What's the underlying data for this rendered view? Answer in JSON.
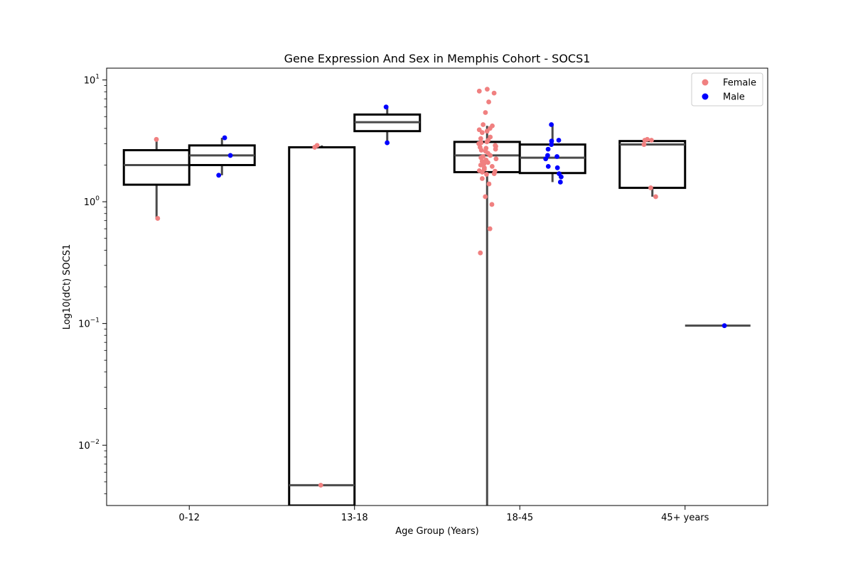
{
  "chart_data": {
    "type": "box",
    "title": "Gene Expression And Sex in Memphis Cohort - SOCS1",
    "xlabel": "Age Group (Years)",
    "ylabel": "Log10(dCt) SOCS1",
    "yscale": "log",
    "ylim": [
      0.0032,
      12.5
    ],
    "y_ticks": [
      {
        "value": 0.01,
        "base": "10",
        "exp": "−2"
      },
      {
        "value": 0.1,
        "base": "10",
        "exp": "−1"
      },
      {
        "value": 1,
        "base": "10",
        "exp": "0"
      },
      {
        "value": 10,
        "base": "10",
        "exp": "1"
      }
    ],
    "categories": [
      "0-12",
      "13-18",
      "18-45",
      "45+ years"
    ],
    "legend": {
      "position": "top-right",
      "items": [
        {
          "label": "Female",
          "color": "#f08080"
        },
        {
          "label": "Male",
          "color": "#0000ff"
        }
      ]
    },
    "series": [
      {
        "name": "Female",
        "color": "#f08080",
        "boxes": [
          {
            "category": "0-12",
            "q1": 1.38,
            "median": 2.0,
            "q3": 2.65,
            "whisker_low": 0.72,
            "whisker_high": 3.25
          },
          {
            "category": "13-18",
            "q1": 0.003,
            "median": 0.0047,
            "q3": 2.8,
            "whisker_low": 0.003,
            "whisker_high": 2.9
          },
          {
            "category": "18-45",
            "q1": 1.75,
            "median": 2.4,
            "q3": 3.1,
            "whisker_low": 0.003,
            "whisker_high": 4.2
          },
          {
            "category": "45+ years",
            "q1": 1.3,
            "median": 2.95,
            "q3": 3.15,
            "whisker_low": 1.1,
            "whisker_high": 3.25
          }
        ],
        "points": [
          {
            "category": "0-12",
            "values": [
              3.25,
              0.73
            ]
          },
          {
            "category": "13-18",
            "values": [
              2.8,
              2.9,
              0.0047
            ]
          },
          {
            "category": "18-45",
            "values": [
              8.4,
              8.1,
              7.8,
              6.6,
              5.4,
              4.3,
              4.2,
              4.0,
              3.9,
              3.8,
              3.7,
              3.4,
              3.3,
              3.2,
              3.1,
              3.05,
              3.0,
              2.9,
              2.85,
              2.8,
              2.75,
              2.7,
              2.65,
              2.6,
              2.5,
              2.4,
              2.35,
              2.3,
              2.25,
              2.2,
              2.15,
              2.1,
              2.05,
              2.0,
              1.95,
              1.9,
              1.85,
              1.8,
              1.78,
              1.75,
              1.7,
              1.68,
              1.55,
              1.4,
              1.1,
              0.95,
              0.6,
              0.38
            ]
          },
          {
            "category": "45+ years",
            "values": [
              3.25,
              3.2,
              3.2,
              2.95,
              1.3,
              1.1
            ]
          }
        ]
      },
      {
        "name": "Male",
        "color": "#0000ff",
        "boxes": [
          {
            "category": "0-12",
            "q1": 2.0,
            "median": 2.4,
            "q3": 2.9,
            "whisker_low": 1.65,
            "whisker_high": 3.35
          },
          {
            "category": "13-18",
            "q1": 3.8,
            "median": 4.5,
            "q3": 5.2,
            "whisker_low": 3.0,
            "whisker_high": 6.0
          },
          {
            "category": "18-45",
            "q1": 1.72,
            "median": 2.3,
            "q3": 2.95,
            "whisker_low": 1.45,
            "whisker_high": 4.3
          },
          {
            "category": "45+ years",
            "q1": 0.096,
            "median": 0.096,
            "q3": 0.096,
            "whisker_low": 0.096,
            "whisker_high": 0.096
          }
        ],
        "points": [
          {
            "category": "0-12",
            "values": [
              3.35,
              2.4,
              1.65
            ]
          },
          {
            "category": "13-18",
            "values": [
              6.0,
              3.05
            ]
          },
          {
            "category": "18-45",
            "values": [
              4.3,
              3.2,
              3.15,
              2.95,
              2.7,
              2.4,
              2.35,
              2.25,
              1.95,
              1.9,
              1.7,
              1.6,
              1.45
            ]
          },
          {
            "category": "45+ years",
            "values": [
              0.096
            ]
          }
        ]
      }
    ]
  }
}
